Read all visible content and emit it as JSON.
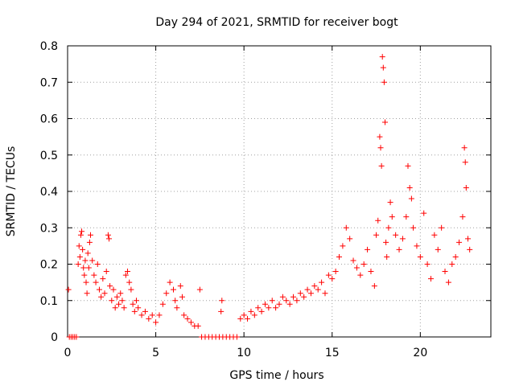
{
  "chart_data": {
    "type": "scatter",
    "title": "Day 294 of 2021, SRMTID for receiver bogt",
    "xlabel": "GPS time / hours",
    "ylabel": "SRMTID / TECUs",
    "xlim": [
      0,
      24
    ],
    "ylim": [
      0,
      0.8
    ],
    "xticks": [
      0,
      5,
      10,
      15,
      20
    ],
    "yticks": [
      0,
      0.1,
      0.2,
      0.3,
      0.4,
      0.5,
      0.6,
      0.7,
      0.8
    ],
    "xtick_labels": [
      "0",
      "5",
      "10",
      "15",
      "20"
    ],
    "ytick_labels": [
      "0",
      "0.1",
      "0.2",
      "0.3",
      "0.4",
      "0.5",
      "0.6",
      "0.7",
      "0.8"
    ],
    "grid": true,
    "marker": "+",
    "color": "#ff0000",
    "series": [
      {
        "name": "SRMTID",
        "points": [
          [
            0.05,
            0.13
          ],
          [
            0.1,
            0.0
          ],
          [
            0.2,
            0.0
          ],
          [
            0.3,
            0.0
          ],
          [
            0.4,
            0.0
          ],
          [
            0.5,
            0.0
          ],
          [
            0.6,
            0.2
          ],
          [
            0.65,
            0.25
          ],
          [
            0.7,
            0.22
          ],
          [
            0.75,
            0.28
          ],
          [
            0.8,
            0.29
          ],
          [
            0.85,
            0.24
          ],
          [
            0.9,
            0.19
          ],
          [
            0.95,
            0.17
          ],
          [
            1.0,
            0.21
          ],
          [
            1.05,
            0.15
          ],
          [
            1.1,
            0.12
          ],
          [
            1.15,
            0.23
          ],
          [
            1.2,
            0.19
          ],
          [
            1.25,
            0.26
          ],
          [
            1.3,
            0.28
          ],
          [
            1.4,
            0.21
          ],
          [
            1.5,
            0.17
          ],
          [
            1.6,
            0.15
          ],
          [
            1.7,
            0.2
          ],
          [
            1.8,
            0.13
          ],
          [
            1.9,
            0.11
          ],
          [
            2.0,
            0.16
          ],
          [
            2.1,
            0.12
          ],
          [
            2.2,
            0.18
          ],
          [
            2.3,
            0.28
          ],
          [
            2.35,
            0.27
          ],
          [
            2.4,
            0.14
          ],
          [
            2.5,
            0.1
          ],
          [
            2.6,
            0.13
          ],
          [
            2.7,
            0.08
          ],
          [
            2.8,
            0.11
          ],
          [
            2.9,
            0.09
          ],
          [
            3.0,
            0.12
          ],
          [
            3.1,
            0.1
          ],
          [
            3.2,
            0.08
          ],
          [
            3.3,
            0.17
          ],
          [
            3.4,
            0.18
          ],
          [
            3.5,
            0.15
          ],
          [
            3.6,
            0.13
          ],
          [
            3.7,
            0.09
          ],
          [
            3.8,
            0.07
          ],
          [
            3.9,
            0.1
          ],
          [
            4.0,
            0.08
          ],
          [
            4.2,
            0.06
          ],
          [
            4.4,
            0.07
          ],
          [
            4.6,
            0.05
          ],
          [
            4.8,
            0.06
          ],
          [
            5.0,
            0.04
          ],
          [
            5.2,
            0.06
          ],
          [
            5.4,
            0.09
          ],
          [
            5.6,
            0.12
          ],
          [
            5.8,
            0.15
          ],
          [
            6.0,
            0.13
          ],
          [
            6.1,
            0.1
          ],
          [
            6.2,
            0.08
          ],
          [
            6.4,
            0.14
          ],
          [
            6.5,
            0.11
          ],
          [
            6.6,
            0.06
          ],
          [
            6.8,
            0.05
          ],
          [
            7.0,
            0.04
          ],
          [
            7.2,
            0.03
          ],
          [
            7.4,
            0.03
          ],
          [
            7.5,
            0.13
          ],
          [
            7.6,
            0.0
          ],
          [
            7.8,
            0.0
          ],
          [
            8.0,
            0.0
          ],
          [
            8.2,
            0.0
          ],
          [
            8.4,
            0.0
          ],
          [
            8.6,
            0.0
          ],
          [
            8.7,
            0.07
          ],
          [
            8.75,
            0.1
          ],
          [
            8.8,
            0.0
          ],
          [
            9.0,
            0.0
          ],
          [
            9.2,
            0.0
          ],
          [
            9.4,
            0.0
          ],
          [
            9.6,
            0.0
          ],
          [
            9.8,
            0.05
          ],
          [
            10.0,
            0.06
          ],
          [
            10.2,
            0.05
          ],
          [
            10.4,
            0.07
          ],
          [
            10.6,
            0.06
          ],
          [
            10.8,
            0.08
          ],
          [
            11.0,
            0.07
          ],
          [
            11.2,
            0.09
          ],
          [
            11.4,
            0.08
          ],
          [
            11.6,
            0.1
          ],
          [
            11.8,
            0.08
          ],
          [
            12.0,
            0.09
          ],
          [
            12.2,
            0.11
          ],
          [
            12.4,
            0.1
          ],
          [
            12.6,
            0.09
          ],
          [
            12.8,
            0.11
          ],
          [
            13.0,
            0.1
          ],
          [
            13.2,
            0.12
          ],
          [
            13.4,
            0.11
          ],
          [
            13.6,
            0.13
          ],
          [
            13.8,
            0.12
          ],
          [
            14.0,
            0.14
          ],
          [
            14.2,
            0.13
          ],
          [
            14.4,
            0.15
          ],
          [
            14.6,
            0.12
          ],
          [
            14.8,
            0.17
          ],
          [
            15.0,
            0.16
          ],
          [
            15.2,
            0.18
          ],
          [
            15.4,
            0.22
          ],
          [
            15.6,
            0.25
          ],
          [
            15.8,
            0.3
          ],
          [
            16.0,
            0.27
          ],
          [
            16.2,
            0.21
          ],
          [
            16.4,
            0.19
          ],
          [
            16.6,
            0.17
          ],
          [
            16.8,
            0.2
          ],
          [
            17.0,
            0.24
          ],
          [
            17.2,
            0.18
          ],
          [
            17.4,
            0.14
          ],
          [
            17.5,
            0.28
          ],
          [
            17.6,
            0.32
          ],
          [
            17.7,
            0.55
          ],
          [
            17.75,
            0.52
          ],
          [
            17.8,
            0.47
          ],
          [
            17.85,
            0.77
          ],
          [
            17.9,
            0.74
          ],
          [
            17.95,
            0.7
          ],
          [
            18.0,
            0.59
          ],
          [
            18.05,
            0.26
          ],
          [
            18.1,
            0.22
          ],
          [
            18.2,
            0.3
          ],
          [
            18.3,
            0.37
          ],
          [
            18.4,
            0.33
          ],
          [
            18.6,
            0.28
          ],
          [
            18.8,
            0.24
          ],
          [
            19.0,
            0.27
          ],
          [
            19.2,
            0.33
          ],
          [
            19.3,
            0.47
          ],
          [
            19.4,
            0.41
          ],
          [
            19.5,
            0.38
          ],
          [
            19.6,
            0.3
          ],
          [
            19.8,
            0.25
          ],
          [
            20.0,
            0.22
          ],
          [
            20.2,
            0.34
          ],
          [
            20.4,
            0.2
          ],
          [
            20.6,
            0.16
          ],
          [
            20.8,
            0.28
          ],
          [
            21.0,
            0.24
          ],
          [
            21.2,
            0.3
          ],
          [
            21.4,
            0.18
          ],
          [
            21.6,
            0.15
          ],
          [
            21.8,
            0.2
          ],
          [
            22.0,
            0.22
          ],
          [
            22.2,
            0.26
          ],
          [
            22.4,
            0.33
          ],
          [
            22.5,
            0.52
          ],
          [
            22.55,
            0.48
          ],
          [
            22.6,
            0.41
          ],
          [
            22.7,
            0.27
          ],
          [
            22.8,
            0.24
          ]
        ]
      }
    ]
  }
}
